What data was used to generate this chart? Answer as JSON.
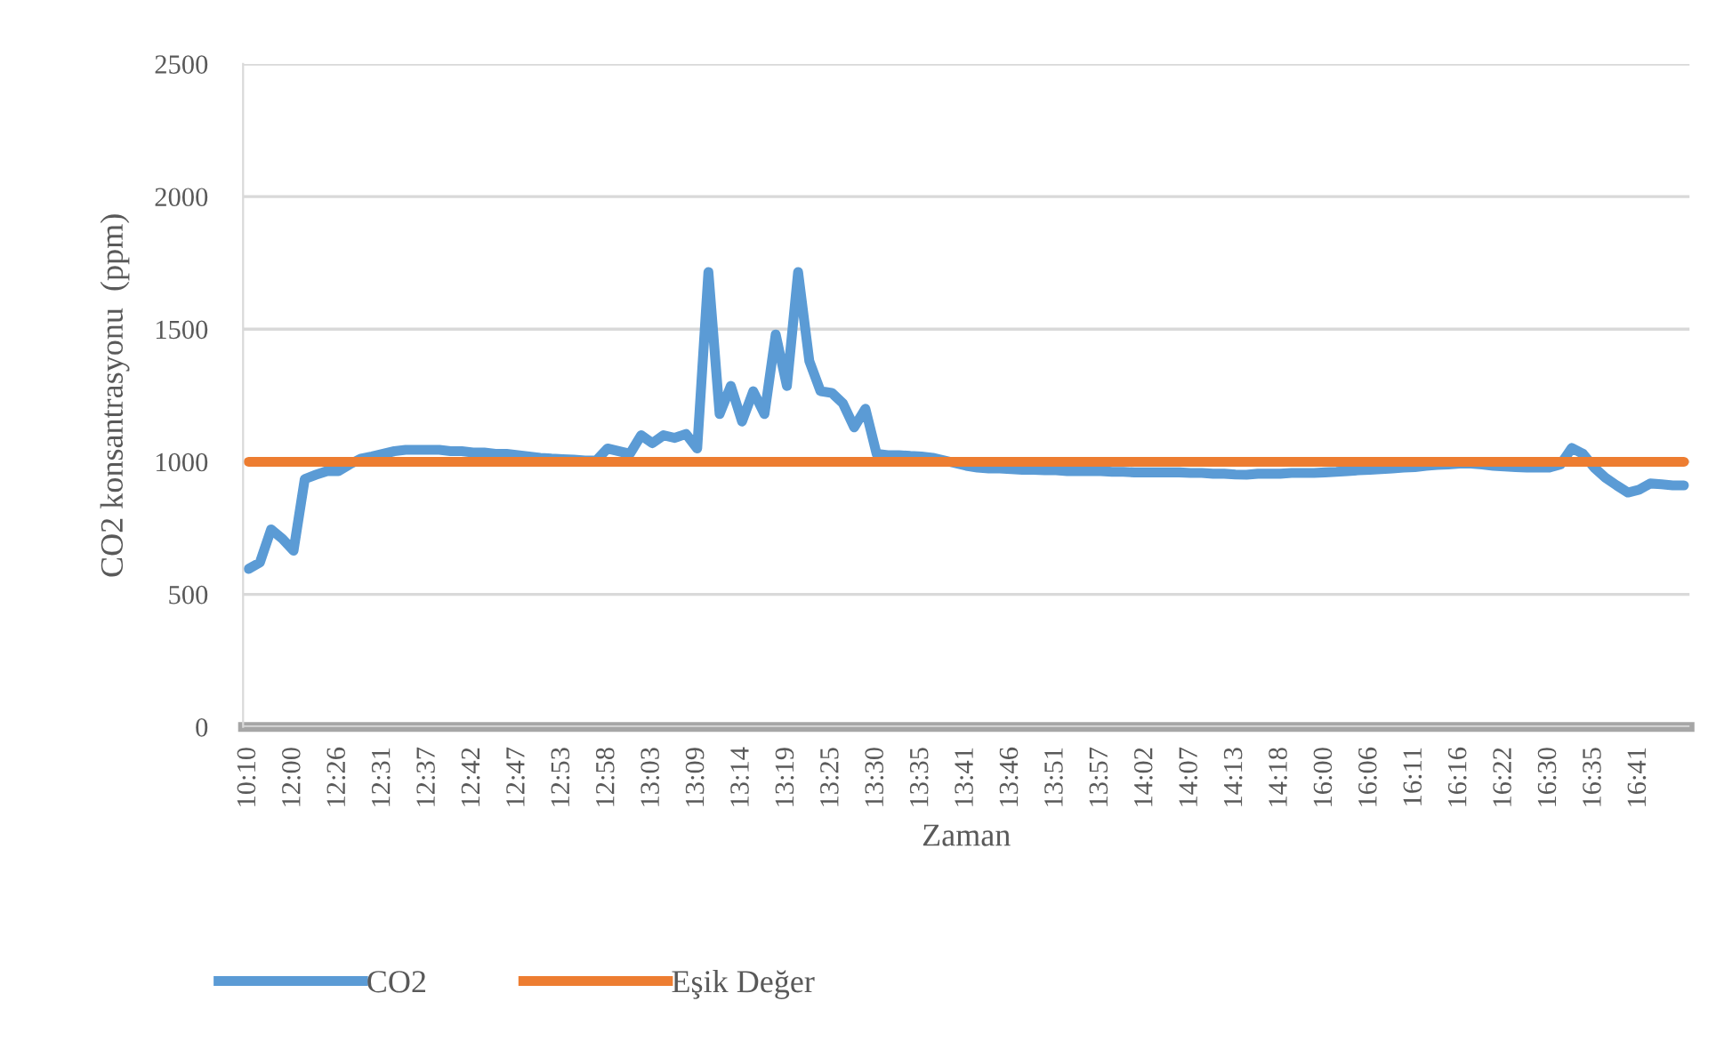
{
  "chart_data": {
    "type": "line",
    "xlabel": "Zaman",
    "ylabel": "CO2 konsantrasyonu  (ppm)",
    "categories": [
      "10:10",
      null,
      null,
      null,
      "12:00",
      null,
      null,
      null,
      "12:26",
      null,
      null,
      null,
      "12:31",
      null,
      null,
      null,
      "12:37",
      null,
      null,
      null,
      "12:42",
      null,
      null,
      null,
      "12:47",
      null,
      null,
      null,
      "12:53",
      null,
      null,
      null,
      "12:58",
      null,
      null,
      null,
      "13:03",
      null,
      null,
      null,
      "13:09",
      null,
      null,
      null,
      "13:14",
      null,
      null,
      null,
      "13:19",
      null,
      null,
      null,
      "13:25",
      null,
      null,
      null,
      "13:30",
      null,
      null,
      null,
      "13:35",
      null,
      null,
      null,
      "13:41",
      null,
      null,
      null,
      "13:46",
      null,
      null,
      null,
      "13:51",
      null,
      null,
      null,
      "13:57",
      null,
      null,
      null,
      "14:02",
      null,
      null,
      null,
      "14:07",
      null,
      null,
      null,
      "14:13",
      null,
      null,
      null,
      "14:18",
      null,
      null,
      null,
      "16:00",
      null,
      null,
      null,
      "16:06",
      null,
      null,
      null,
      "16:11",
      null,
      null,
      null,
      "16:16",
      null,
      null,
      null,
      "16:22",
      null,
      null,
      null,
      "16:30",
      null,
      null,
      null,
      "16:35",
      null,
      null,
      null,
      "16:41",
      null,
      null,
      null,
      null
    ],
    "series": [
      {
        "name": "CO2",
        "color": "#5b9bd5",
        "values": [
          596,
          620,
          745,
          710,
          665,
          935,
          951,
          965,
          965,
          990,
          1012,
          1020,
          1030,
          1040,
          1045,
          1045,
          1045,
          1045,
          1040,
          1040,
          1035,
          1035,
          1030,
          1030,
          1025,
          1020,
          1015,
          1012,
          1010,
          1008,
          1005,
          1005,
          1050,
          1040,
          1030,
          1100,
          1070,
          1100,
          1090,
          1105,
          1050,
          1715,
          1180,
          1286,
          1152,
          1266,
          1180,
          1480,
          1286,
          1715,
          1380,
          1266,
          1260,
          1220,
          1130,
          1200,
          1030,
          1025,
          1025,
          1022,
          1020,
          1015,
          1005,
          995,
          985,
          978,
          975,
          975,
          972,
          970,
          970,
          968,
          968,
          965,
          965,
          965,
          965,
          962,
          962,
          960,
          960,
          960,
          960,
          960,
          958,
          958,
          955,
          955,
          952,
          951,
          955,
          955,
          955,
          958,
          958,
          958,
          960,
          962,
          965,
          968,
          970,
          972,
          975,
          978,
          980,
          985,
          988,
          990,
          993,
          993,
          990,
          985,
          982,
          980,
          978,
          978,
          978,
          990,
          1052,
          1030,
          978,
          940,
          911,
          884,
          895,
          918,
          915,
          911,
          911
        ]
      },
      {
        "name": "Eşik Değer",
        "color": "#ed7d31",
        "values": [
          1000,
          1000,
          1000,
          1000,
          1000,
          1000,
          1000,
          1000,
          1000,
          1000,
          1000,
          1000,
          1000,
          1000,
          1000,
          1000,
          1000,
          1000,
          1000,
          1000,
          1000,
          1000,
          1000,
          1000,
          1000,
          1000,
          1000,
          1000,
          1000,
          1000,
          1000,
          1000,
          1000,
          1000,
          1000,
          1000,
          1000,
          1000,
          1000,
          1000,
          1000,
          1000,
          1000,
          1000,
          1000,
          1000,
          1000,
          1000,
          1000,
          1000,
          1000,
          1000,
          1000,
          1000,
          1000,
          1000,
          1000,
          1000,
          1000,
          1000,
          1000,
          1000,
          1000,
          1000,
          1000,
          1000,
          1000,
          1000,
          1000,
          1000,
          1000,
          1000,
          1000,
          1000,
          1000,
          1000,
          1000,
          1000,
          1000,
          1000,
          1000,
          1000,
          1000,
          1000,
          1000,
          1000,
          1000,
          1000,
          1000,
          1000,
          1000,
          1000,
          1000,
          1000,
          1000,
          1000,
          1000,
          1000,
          1000,
          1000,
          1000,
          1000,
          1000,
          1000,
          1000,
          1000,
          1000,
          1000,
          1000,
          1000,
          1000,
          1000,
          1000,
          1000,
          1000,
          1000,
          1000,
          1000,
          1000,
          1000,
          1000,
          1000,
          1000,
          1000,
          1000,
          1000,
          1000,
          1000,
          1000
        ]
      }
    ],
    "ylim": [
      0,
      2500
    ],
    "yticks": [
      0,
      500,
      1000,
      1500,
      2000,
      2500
    ],
    "grid": "y",
    "legend": "bottom left",
    "marker": "none",
    "line_style": "solid"
  }
}
